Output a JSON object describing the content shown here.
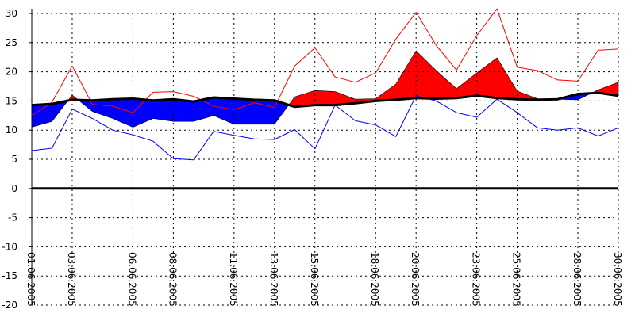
{
  "chart_data": {
    "type": "area",
    "title": "",
    "xlabel": "",
    "ylabel": "",
    "ylim": [
      -20,
      30
    ],
    "yticks": [
      30,
      25,
      20,
      15,
      10,
      5,
      0,
      -5,
      -10,
      -15,
      -20
    ],
    "grid": true,
    "legend": "none",
    "x": [
      "01.06.2005",
      "02.06.2005",
      "03.06.2005",
      "04.06.2005",
      "05.06.2005",
      "06.06.2005",
      "07.06.2005",
      "08.06.2005",
      "09.06.2005",
      "10.06.2005",
      "11.06.2005",
      "12.06.2005",
      "13.06.2005",
      "14.06.2005",
      "15.06.2005",
      "16.06.2005",
      "17.06.2005",
      "18.06.2005",
      "19.06.2005",
      "20.06.2005",
      "21.06.2005",
      "22.06.2005",
      "23.06.2005",
      "24.06.2005",
      "25.06.2005",
      "26.06.2005",
      "27.06.2005",
      "28.06.2005",
      "29.06.2005",
      "30.06.2005"
    ],
    "xtick_labels": [
      "01.06.2005",
      "03.06.2005",
      "06.06.2005",
      "08.06.2005",
      "11.06.2005",
      "13.06.2005",
      "15.06.2005",
      "18.06.2005",
      "20.06.2005",
      "23.06.2005",
      "25.06.2005",
      "28.06.2005",
      "30.06.2005"
    ],
    "zero_line": 0,
    "series": [
      {
        "role": "max",
        "color": "#ff0000",
        "values": [
          12.5,
          14.8,
          21.0,
          14.4,
          14.1,
          13.0,
          16.5,
          16.6,
          15.8,
          14.1,
          13.5,
          14.7,
          13.9,
          21.0,
          24.1,
          19.1,
          18.2,
          19.8,
          25.6,
          30.2,
          24.5,
          20.3,
          26.2,
          30.8,
          20.8,
          20.2,
          18.6,
          18.4,
          23.7,
          23.9
        ]
      },
      {
        "role": "min",
        "color": "#0000ff",
        "values": [
          6.5,
          6.9,
          13.6,
          12.0,
          10.0,
          9.2,
          8.1,
          5.1,
          4.9,
          9.8,
          9.1,
          8.5,
          8.4,
          10.1,
          6.8,
          14.3,
          11.6,
          10.9,
          8.9,
          15.9,
          15.0,
          13.0,
          12.2,
          15.3,
          13.0,
          10.4,
          10.0,
          10.4,
          9.0,
          10.4
        ]
      },
      {
        "role": "mean",
        "color": "#ff0000",
        "values": [
          10.5,
          11.5,
          16.0,
          13.2,
          12.0,
          10.5,
          12.0,
          11.5,
          11.5,
          12.5,
          11.0,
          11.0,
          11.0,
          15.7,
          16.8,
          16.6,
          15.3,
          15.4,
          17.9,
          23.6,
          20.2,
          17.1,
          19.8,
          22.4,
          16.7,
          15.4,
          15.3,
          15.2,
          16.9,
          18.2
        ]
      },
      {
        "role": "normal",
        "color": "#000000",
        "values": [
          14.3,
          14.5,
          15.2,
          15.1,
          15.3,
          15.4,
          15.1,
          15.3,
          14.9,
          15.6,
          15.4,
          15.2,
          15.1,
          14.0,
          14.3,
          14.3,
          14.6,
          15.0,
          15.2,
          15.5,
          15.4,
          15.5,
          15.9,
          15.5,
          15.3,
          15.2,
          15.3,
          16.2,
          16.4,
          15.9
        ]
      }
    ]
  }
}
